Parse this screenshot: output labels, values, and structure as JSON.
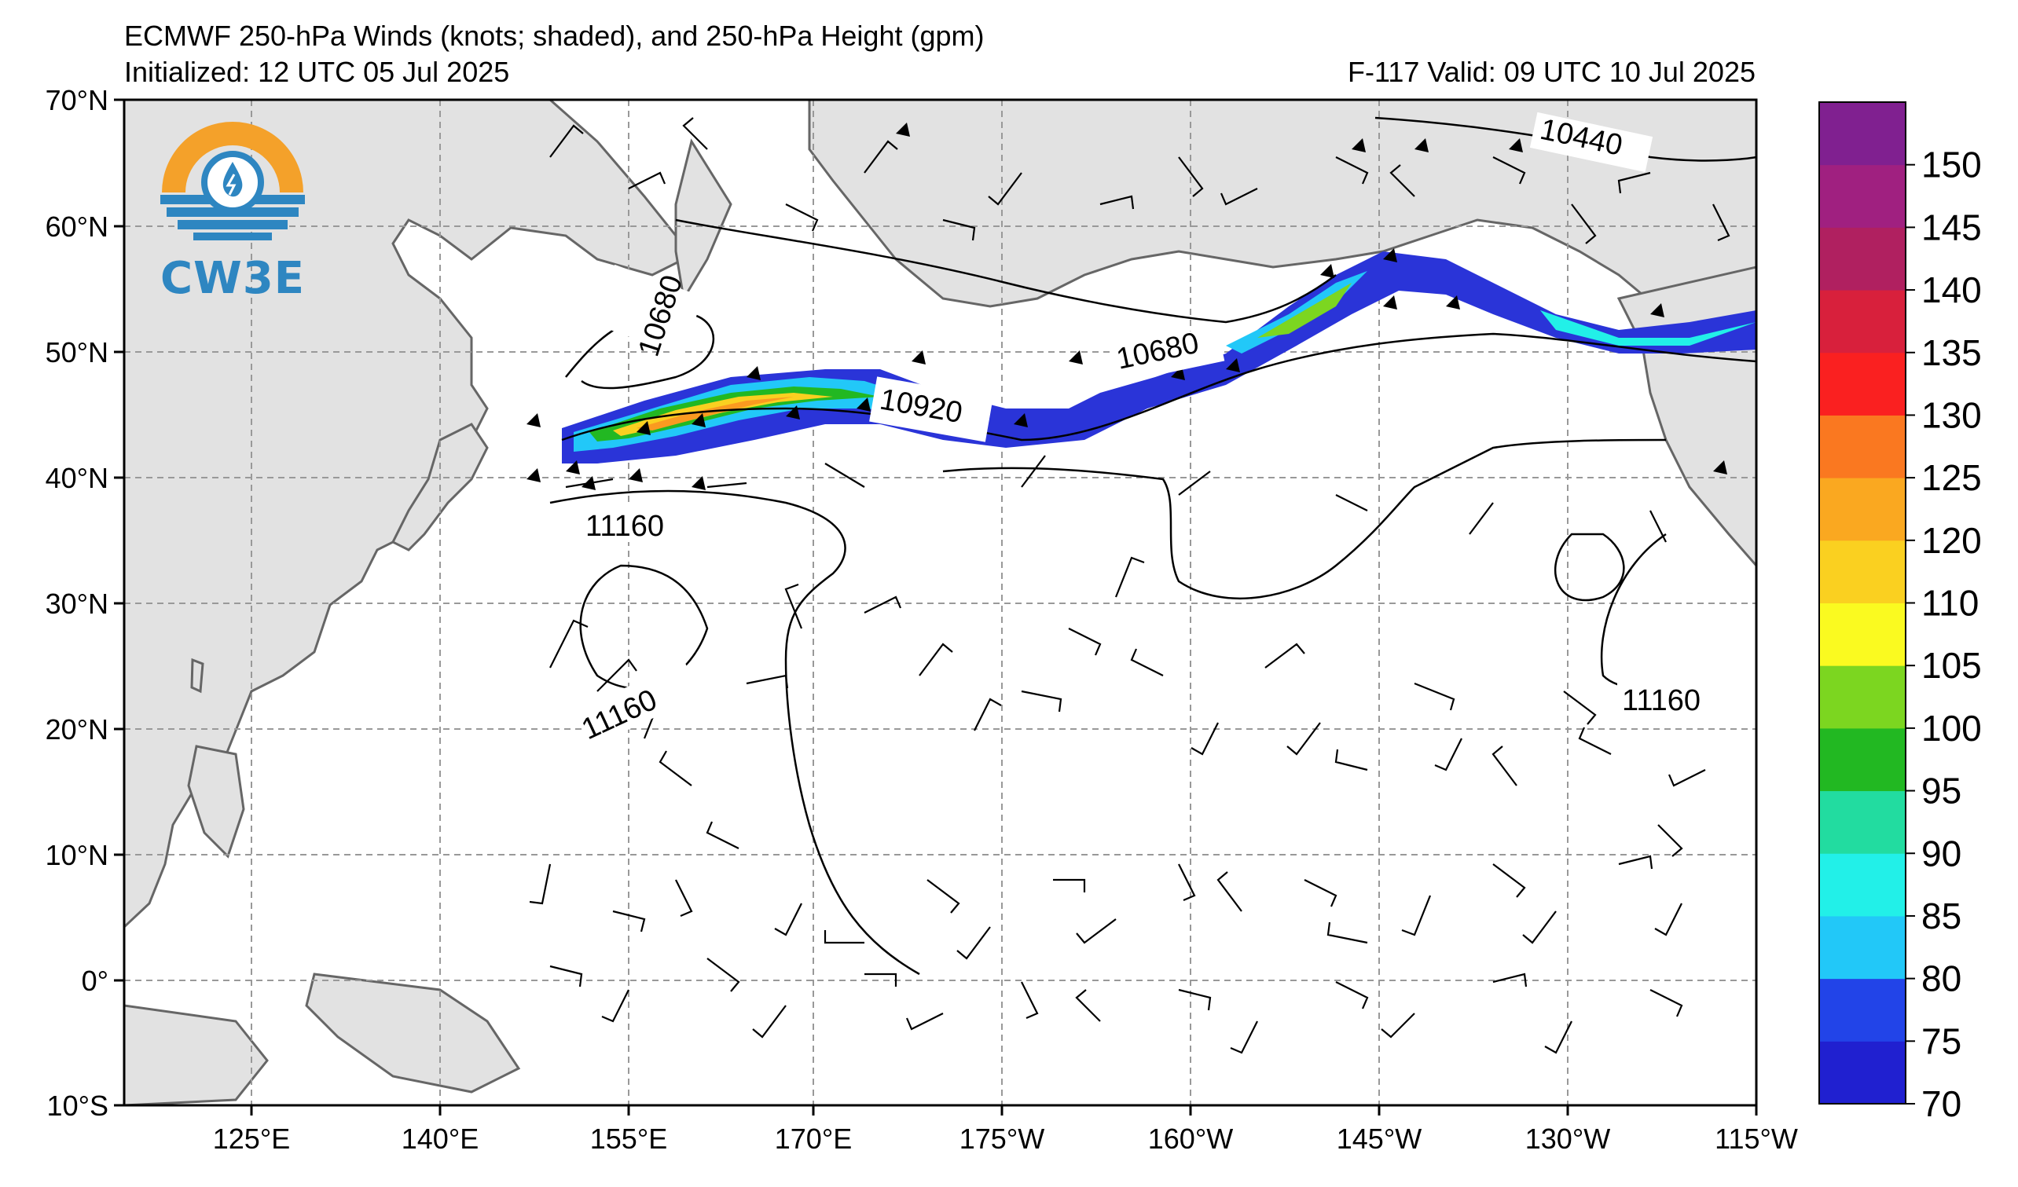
{
  "header": {
    "title": "ECMWF 250-hPa Winds (knots; shaded), and 250-hPa Height (gpm)",
    "initialized": "Initialized: 12 UTC 05 Jul 2025",
    "valid": "F-117  Valid: 09 UTC 10 Jul 2025"
  },
  "logo": {
    "text": "CW3E"
  },
  "map": {
    "lon_ticks": [
      "125°E",
      "140°E",
      "155°E",
      "170°E",
      "175°W",
      "160°W",
      "145°W",
      "130°W",
      "115°W"
    ],
    "lat_ticks": [
      "70°N",
      "60°N",
      "50°N",
      "40°N",
      "30°N",
      "20°N",
      "10°N",
      "0°",
      "10°S"
    ],
    "contour_labels": [
      "10680",
      "10680",
      "10920",
      "11160",
      "11160",
      "11160",
      "10440"
    ]
  },
  "colorbar": {
    "ticks": [
      "70",
      "75",
      "80",
      "85",
      "90",
      "95",
      "100",
      "105",
      "110",
      "120",
      "125",
      "130",
      "135",
      "140",
      "145",
      "150"
    ],
    "colors": [
      "#2020d0",
      "#2244e8",
      "#22c8f8",
      "#22f0e8",
      "#22dca0",
      "#22b822",
      "#7cd620",
      "#fafa20",
      "#fad020",
      "#faa820",
      "#fa7820",
      "#fa2020",
      "#d8203c",
      "#b02060",
      "#a02080",
      "#802090"
    ]
  }
}
